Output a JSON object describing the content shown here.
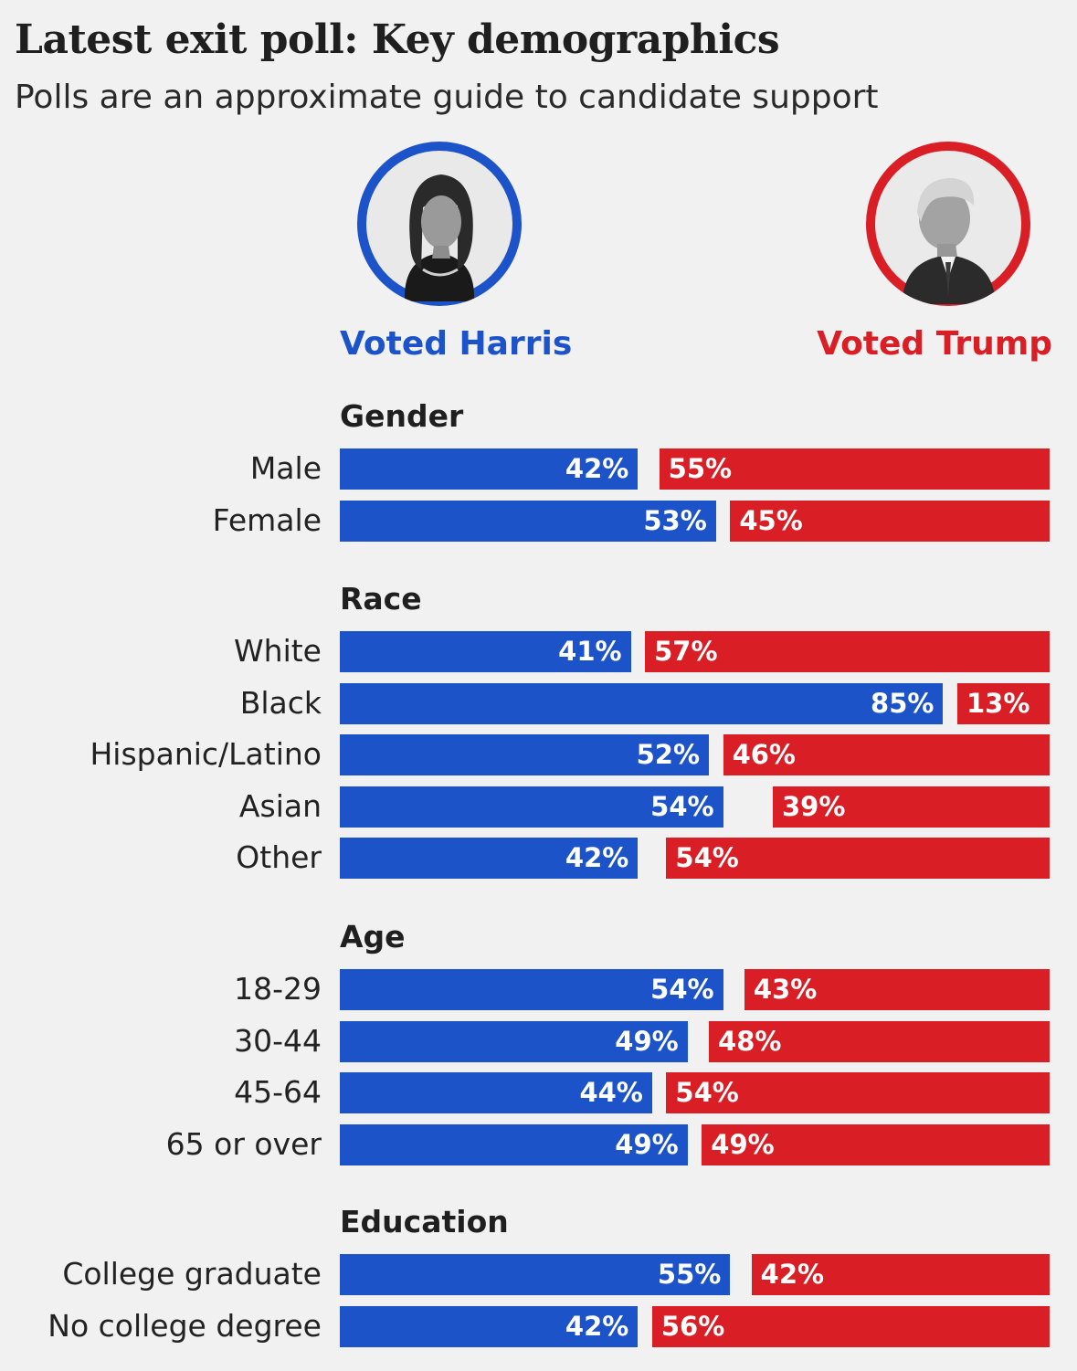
{
  "title": "Latest exit poll: Key demographics",
  "subtitle": "Polls are an approximate guide to candidate support",
  "candidates": {
    "harris": {
      "label": "Voted Harris",
      "color": "#1c53c8"
    },
    "trump": {
      "label": "Voted Trump",
      "color": "#d91e25"
    }
  },
  "chart_data": {
    "type": "bar",
    "orientation": "horizontal",
    "stacked": true,
    "series": [
      {
        "name": "Voted Harris",
        "color": "#1c53c8"
      },
      {
        "name": "Voted Trump",
        "color": "#d91e25"
      }
    ],
    "groups": [
      {
        "title": "Gender",
        "rows": [
          {
            "label": "Male",
            "harris": 42,
            "trump": 55
          },
          {
            "label": "Female",
            "harris": 53,
            "trump": 45
          }
        ]
      },
      {
        "title": "Race",
        "rows": [
          {
            "label": "White",
            "harris": 41,
            "trump": 57
          },
          {
            "label": "Black",
            "harris": 85,
            "trump": 13
          },
          {
            "label": "Hispanic/Latino",
            "harris": 52,
            "trump": 46
          },
          {
            "label": "Asian",
            "harris": 54,
            "trump": 39
          },
          {
            "label": "Other",
            "harris": 42,
            "trump": 54
          }
        ]
      },
      {
        "title": "Age",
        "rows": [
          {
            "label": "18-29",
            "harris": 54,
            "trump": 43
          },
          {
            "label": "30-44",
            "harris": 49,
            "trump": 48
          },
          {
            "label": "45-64",
            "harris": 44,
            "trump": 54
          },
          {
            "label": "65 or over",
            "harris": 49,
            "trump": 49
          }
        ]
      },
      {
        "title": "Education",
        "rows": [
          {
            "label": "College graduate",
            "harris": 55,
            "trump": 42
          },
          {
            "label": "No college degree",
            "harris": 42,
            "trump": 56
          }
        ]
      }
    ],
    "value_suffix": "%"
  }
}
